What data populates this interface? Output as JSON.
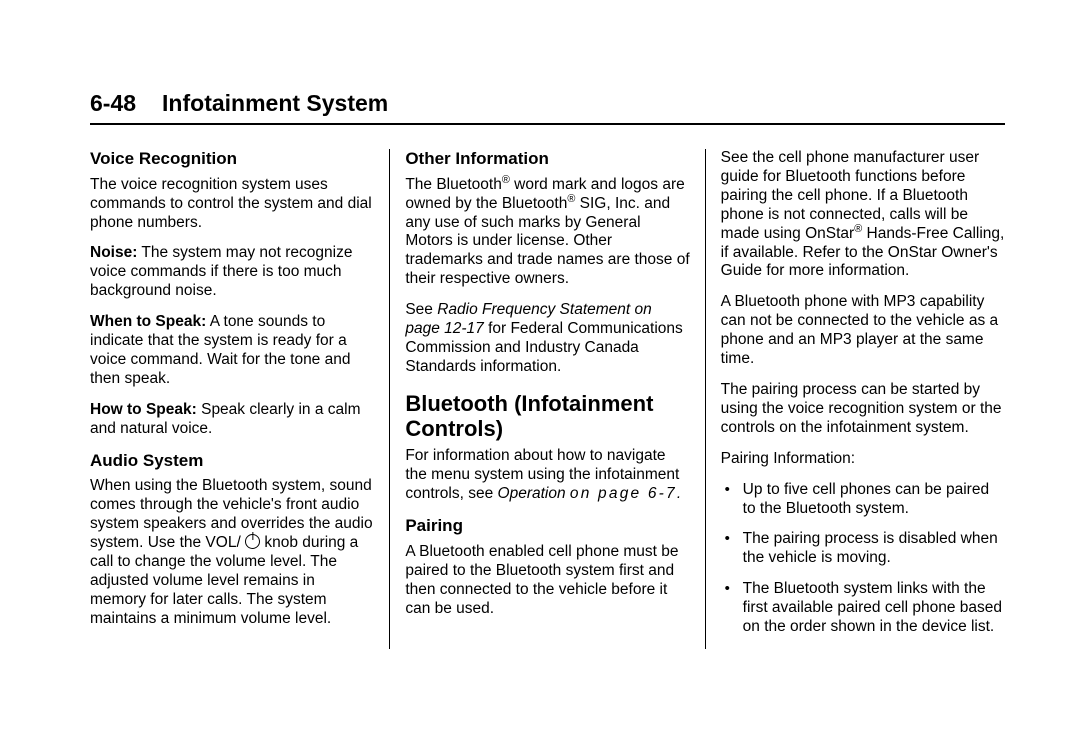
{
  "header": {
    "page_number": "6-48",
    "chapter_title": "Infotainment System"
  },
  "col1": {
    "voice_recognition": {
      "heading": "Voice Recognition",
      "intro": "The voice recognition system uses commands to control the system and dial phone numbers.",
      "noise_label": "Noise:",
      "noise_text": "  The system may not recognize voice commands if there is too much background noise.",
      "when_label": "When to Speak:",
      "when_text": "  A tone sounds to indicate that the system is ready for a voice command. Wait for the tone and then speak.",
      "how_label": "How to Speak:",
      "how_text": "  Speak clearly in a calm and natural voice."
    },
    "audio_system": {
      "heading": "Audio System",
      "text_pre": "When using the Bluetooth system, sound comes through the vehicle's front audio system speakers and overrides the audio system. Use the VOL/ ",
      "text_post": " knob during a call to change the volume level. The adjusted volume level remains in memory for later calls. The system maintains a minimum volume level."
    }
  },
  "col2": {
    "other_info": {
      "heading": "Other Information",
      "p1_pre": "The Bluetooth",
      "p1_mid": " word mark and logos are owned by the Bluetooth",
      "p1_post": " SIG, Inc. and any use of such marks by General Motors is under license. Other trademarks and trade names are those of their respective owners.",
      "p2_pre": "See ",
      "p2_ital": "Radio Frequency Statement on page 12-17",
      "p2_post": " for Federal Communications Commission and Industry Canada Standards information."
    },
    "bluetooth": {
      "heading": "Bluetooth (Infotainment Controls)",
      "p1_pre": "For information about how to navigate the menu system using the infotainment controls, see ",
      "p1_ital_word": "Operation",
      "p1_spaced": "on page 6-7."
    },
    "pairing": {
      "heading": "Pairing",
      "p1": "A Bluetooth enabled cell phone must be paired to the Bluetooth system first and then connected to the vehicle before it can be used."
    }
  },
  "col3": {
    "p1_pre": "See the cell phone manufacturer user guide for Bluetooth functions before pairing the cell phone. If a Bluetooth phone is not connected, calls will be made using OnStar",
    "p1_post": " Hands-Free Calling, if available. Refer to the OnStar Owner's Guide for more information.",
    "p2": "A Bluetooth phone with MP3 capability can not be connected to the vehicle as a phone and an MP3 player at the same time.",
    "p3": "The pairing process can be started by using the voice recognition system or the controls on the infotainment system.",
    "p4": "Pairing Information:",
    "bullets": {
      "b1": "Up to five cell phones can be paired to the Bluetooth system.",
      "b2": "The pairing process is disabled when the vehicle is moving.",
      "b3": "The Bluetooth system links with the first available paired cell phone based on the order shown in the device list."
    }
  }
}
